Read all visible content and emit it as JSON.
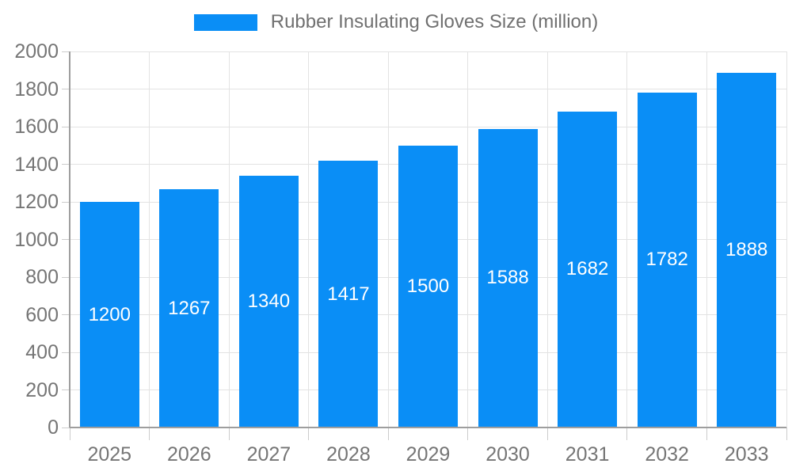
{
  "chart_data": {
    "type": "bar",
    "categories": [
      "2025",
      "2026",
      "2027",
      "2028",
      "2029",
      "2030",
      "2031",
      "2032",
      "2033"
    ],
    "values": [
      1200,
      1267,
      1340,
      1417,
      1500,
      1588,
      1682,
      1782,
      1888
    ],
    "legend": [
      {
        "label": "Rubber Insulating Gloves Size (million)",
        "color": "#0a8ef6"
      }
    ],
    "xlabel": "",
    "ylabel": "",
    "ylim": [
      0,
      2000
    ],
    "yticks": [
      0,
      200,
      400,
      600,
      800,
      1000,
      1200,
      1400,
      1600,
      1800,
      2000
    ],
    "grid": true,
    "legend_position": "top",
    "bar_value_labels_inside": true,
    "colors": {
      "bar": "#0a8ef6",
      "bar_value_text": "#ffffff",
      "axis_text": "#757575",
      "legend_text": "#707070",
      "gridline": "#e3e3e3",
      "axis_line": "#9e9e9e",
      "tick": "#cccccc",
      "background": "#ffffff"
    }
  }
}
